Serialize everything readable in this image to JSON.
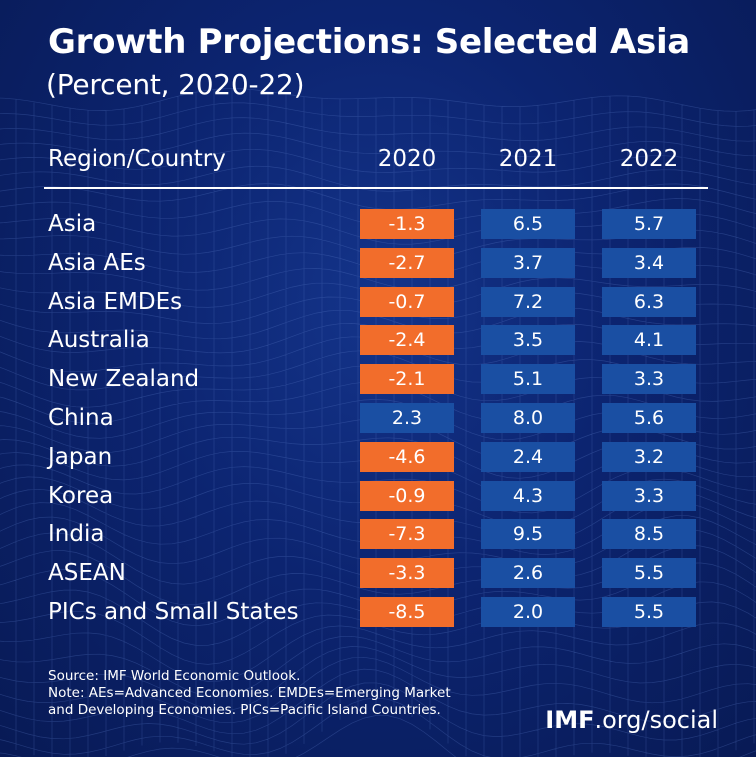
{
  "title": "Growth Projections: Selected Asia",
  "subtitle": "(Percent, 2020-22)",
  "colors": {
    "negative": "#f26d2b",
    "positive": "#1a4fa3",
    "background": "#0c2470"
  },
  "chart_data": {
    "type": "table",
    "title": "Growth Projections: Selected Asia",
    "subtitle": "(Percent, 2020-22)",
    "columns": [
      "Region/Country",
      "2020",
      "2021",
      "2022"
    ],
    "rows": [
      {
        "region": "Asia",
        "values": [
          "-1.3",
          "6.5",
          "5.7"
        ]
      },
      {
        "region": "Asia AEs",
        "values": [
          "-2.7",
          "3.7",
          "3.4"
        ]
      },
      {
        "region": "Asia EMDEs",
        "values": [
          "-0.7",
          "7.2",
          "6.3"
        ]
      },
      {
        "region": "Australia",
        "values": [
          "-2.4",
          "3.5",
          "4.1"
        ]
      },
      {
        "region": "New Zealand",
        "values": [
          "-2.1",
          "5.1",
          "3.3"
        ]
      },
      {
        "region": "China",
        "values": [
          "2.3",
          "8.0",
          "5.6"
        ]
      },
      {
        "region": "Japan",
        "values": [
          "-4.6",
          "2.4",
          "3.2"
        ]
      },
      {
        "region": "Korea",
        "values": [
          "-0.9",
          "4.3",
          "3.3"
        ]
      },
      {
        "region": "India",
        "values": [
          "-7.3",
          "9.5",
          "8.5"
        ]
      },
      {
        "region": "ASEAN",
        "values": [
          "-3.3",
          "2.6",
          "5.5"
        ]
      },
      {
        "region": "PICs and Small States",
        "values": [
          "-8.5",
          "2.0",
          "5.5"
        ]
      }
    ]
  },
  "footnotes": [
    "Source: IMF World Economic Outlook.",
    "Note: AEs=Advanced Economies. EMDEs=Emerging Market",
    "and Developing Economies. PICs=Pacific Island Countries."
  ],
  "brand": {
    "strong": "IMF",
    "rest": ".org/social"
  }
}
